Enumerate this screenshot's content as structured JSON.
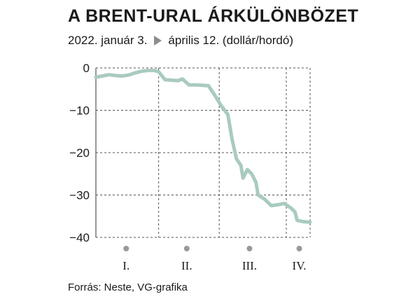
{
  "header": {
    "title": "A BRENT-URAL ÁRKÜLÖNBÖZET",
    "subtitle_start": "2022. január 3.",
    "subtitle_arrow": "arrow-right-icon",
    "subtitle_end": "április 12. (dollár/hordó)"
  },
  "footer": {
    "source": "Forrás: Neste, VG-grafika"
  },
  "chart_data": {
    "type": "line",
    "title": "A BRENT-URAL ÁRKÜLÖNBÖZET",
    "subtitle": "2022. január 3. ▶ április 12. (dollár/hordó)",
    "ylabel": "",
    "xlabel": "",
    "ylim": [
      -40,
      0
    ],
    "yticks": [
      0,
      -10,
      -20,
      -30,
      -40
    ],
    "ytick_labels": [
      "0",
      "−10",
      "−20",
      "−30",
      "−40"
    ],
    "x_range": [
      "2022-01-03",
      "2022-04-12"
    ],
    "x_categories": [
      "I.",
      "II.",
      "III.",
      "IV."
    ],
    "grid": true,
    "line_color": "#a9cbbf",
    "grid_color": "#555555",
    "marker_color": "#999999",
    "series": [
      {
        "name": "",
        "points": [
          [
            "2022-01-03",
            -2.2
          ],
          [
            "2022-01-06",
            -1.9
          ],
          [
            "2022-01-09",
            -1.6
          ],
          [
            "2022-01-12",
            -1.8
          ],
          [
            "2022-01-15",
            -1.9
          ],
          [
            "2022-01-18",
            -1.7
          ],
          [
            "2022-01-21",
            -1.2
          ],
          [
            "2022-01-24",
            -0.8
          ],
          [
            "2022-01-27",
            -0.6
          ],
          [
            "2022-01-30",
            -0.6
          ],
          [
            "2022-02-01",
            -0.9
          ],
          [
            "2022-02-04",
            -2.8
          ],
          [
            "2022-02-07",
            -2.9
          ],
          [
            "2022-02-10",
            -3.0
          ],
          [
            "2022-02-12",
            -2.6
          ],
          [
            "2022-02-15",
            -4.0
          ],
          [
            "2022-02-18",
            -4.0
          ],
          [
            "2022-02-21",
            -4.1
          ],
          [
            "2022-02-24",
            -4.2
          ],
          [
            "2022-02-27",
            -6.5
          ],
          [
            "2022-03-02",
            -9.0
          ],
          [
            "2022-03-05",
            -11.0
          ],
          [
            "2022-03-07",
            -17.0
          ],
          [
            "2022-03-09",
            -21.5
          ],
          [
            "2022-03-11",
            -23.0
          ],
          [
            "2022-03-12",
            -26.0
          ],
          [
            "2022-03-14",
            -24.0
          ],
          [
            "2022-03-16",
            -25.0
          ],
          [
            "2022-03-18",
            -27.0
          ],
          [
            "2022-03-19",
            -30.0
          ],
          [
            "2022-03-22",
            -31.0
          ],
          [
            "2022-03-25",
            -32.5
          ],
          [
            "2022-03-28",
            -32.3
          ],
          [
            "2022-03-31",
            -32.0
          ],
          [
            "2022-04-03",
            -33.0
          ],
          [
            "2022-04-05",
            -34.0
          ],
          [
            "2022-04-06",
            -36.0
          ],
          [
            "2022-04-09",
            -36.3
          ],
          [
            "2022-04-12",
            -36.4
          ]
        ]
      }
    ]
  }
}
